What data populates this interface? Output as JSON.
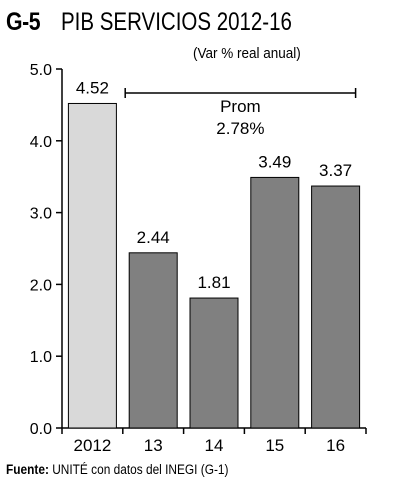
{
  "header": {
    "code": "G-5",
    "title": "PIB SERVICIOS 2012-16",
    "subtitle": "(Var % real anual)"
  },
  "source": {
    "label": "Fuente:",
    "text": "UNITÉ con datos del INEGI (G-1)"
  },
  "chart_data": {
    "type": "bar",
    "title": "PIB SERVICIOS 2012-16",
    "subtitle": "(Var % real anual)",
    "categories": [
      "2012",
      "13",
      "14",
      "15",
      "16"
    ],
    "values": [
      4.52,
      2.44,
      1.81,
      3.49,
      3.37
    ],
    "value_labels": [
      "4.52",
      "2.44",
      "1.81",
      "3.49",
      "3.37"
    ],
    "yticks": [
      "0.0",
      "1.0",
      "2.0",
      "3.0",
      "4.0",
      "5.0"
    ],
    "ylim": [
      0,
      5
    ],
    "xlabel": "",
    "ylabel": "",
    "grid": false,
    "colors": {
      "highlight": "#d9d9d9",
      "bar": "#808080",
      "stroke": "#000000"
    },
    "annotation": {
      "line1": "Prom",
      "line2": "2.78%"
    }
  }
}
